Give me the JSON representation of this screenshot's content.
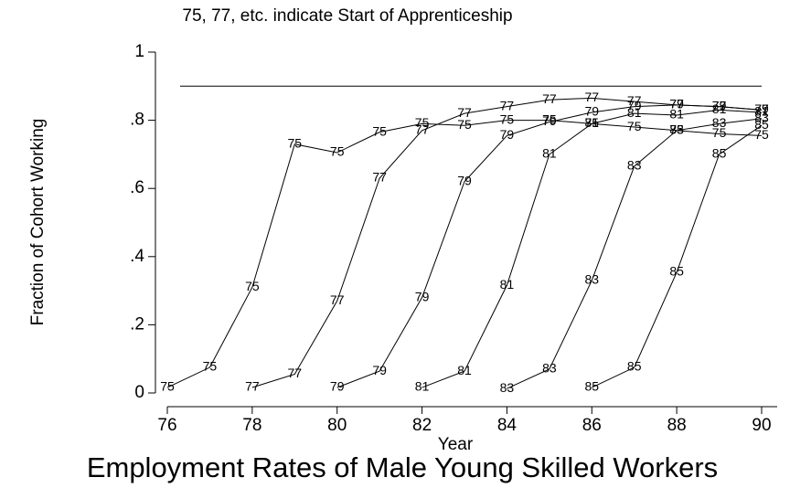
{
  "chart_data": {
    "type": "line",
    "title": "Employment Rates of Male Young Skilled Workers",
    "subtitle": "75, 77, etc. indicate Start of Apprenticeship",
    "x_label": "Year",
    "y_label": "Fraction of Cohort Working",
    "x": [
      76,
      77,
      78,
      79,
      80,
      81,
      82,
      83,
      84,
      85,
      86,
      87,
      88,
      89,
      90
    ],
    "series": [
      {
        "name": "75",
        "color": "#000000",
        "values": [
          0.016,
          0.075,
          0.31,
          0.73,
          0.705,
          0.765,
          0.79,
          0.785,
          0.8,
          0.8,
          0.79,
          0.78,
          0.77,
          0.76,
          0.755
        ]
      },
      {
        "name": "77",
        "color": "#000000",
        "values": [
          null,
          null,
          0.016,
          0.055,
          0.27,
          0.63,
          0.77,
          0.82,
          0.84,
          0.86,
          0.865,
          0.855,
          0.845,
          0.84,
          0.83
        ]
      },
      {
        "name": "79",
        "color": "#000000",
        "values": [
          null,
          null,
          null,
          null,
          0.016,
          0.064,
          0.28,
          0.62,
          0.755,
          0.795,
          0.823,
          0.84,
          0.845,
          0.84,
          0.83
        ]
      },
      {
        "name": "81",
        "color": "#000000",
        "values": [
          null,
          null,
          null,
          null,
          null,
          null,
          0.016,
          0.064,
          0.316,
          0.7,
          0.79,
          0.82,
          0.815,
          0.83,
          0.823
        ]
      },
      {
        "name": "83",
        "color": "#000000",
        "values": [
          null,
          null,
          null,
          null,
          null,
          null,
          null,
          null,
          0.013,
          0.07,
          0.33,
          0.665,
          0.77,
          0.79,
          0.805
        ]
      },
      {
        "name": "85",
        "color": "#000000",
        "values": [
          null,
          null,
          null,
          null,
          null,
          null,
          null,
          null,
          null,
          null,
          0.016,
          0.075,
          0.354,
          0.7,
          0.785
        ]
      }
    ],
    "reference_line": 0.9,
    "xlim": [
      76,
      90
    ],
    "xticks": [
      76,
      78,
      80,
      82,
      84,
      86,
      88,
      90
    ],
    "ylim": [
      0,
      1
    ],
    "yticks": [
      0,
      {
        "value": 0.2,
        "label": ".2"
      },
      {
        "value": 0.4,
        "label": ".4"
      },
      {
        "value": 0.6,
        "label": ".6"
      },
      {
        "value": 0.8,
        "label": ".8"
      },
      1
    ],
    "grid": false
  }
}
